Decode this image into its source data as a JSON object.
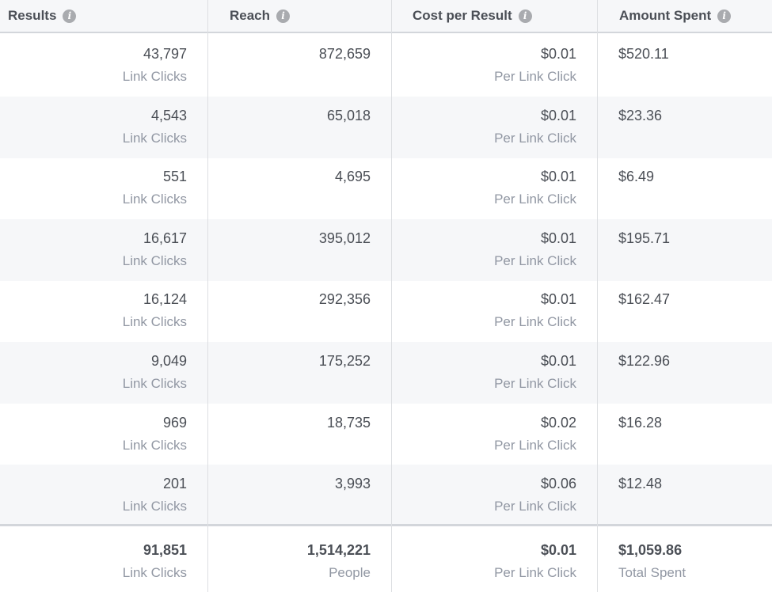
{
  "header": {
    "results": "Results",
    "reach": "Reach",
    "cost_per_result": "Cost per Result",
    "amount_spent": "Amount Spent"
  },
  "rows": [
    {
      "results": "43,797",
      "results_sub": "Link Clicks",
      "reach": "872,659",
      "cost": "$0.01",
      "cost_sub": "Per Link Click",
      "spent": "$520.11"
    },
    {
      "results": "4,543",
      "results_sub": "Link Clicks",
      "reach": "65,018",
      "cost": "$0.01",
      "cost_sub": "Per Link Click",
      "spent": "$23.36"
    },
    {
      "results": "551",
      "results_sub": "Link Clicks",
      "reach": "4,695",
      "cost": "$0.01",
      "cost_sub": "Per Link Click",
      "spent": "$6.49"
    },
    {
      "results": "16,617",
      "results_sub": "Link Clicks",
      "reach": "395,012",
      "cost": "$0.01",
      "cost_sub": "Per Link Click",
      "spent": "$195.71"
    },
    {
      "results": "16,124",
      "results_sub": "Link Clicks",
      "reach": "292,356",
      "cost": "$0.01",
      "cost_sub": "Per Link Click",
      "spent": "$162.47"
    },
    {
      "results": "9,049",
      "results_sub": "Link Clicks",
      "reach": "175,252",
      "cost": "$0.01",
      "cost_sub": "Per Link Click",
      "spent": "$122.96"
    },
    {
      "results": "969",
      "results_sub": "Link Clicks",
      "reach": "18,735",
      "cost": "$0.02",
      "cost_sub": "Per Link Click",
      "spent": "$16.28"
    },
    {
      "results": "201",
      "results_sub": "Link Clicks",
      "reach": "3,993",
      "cost": "$0.06",
      "cost_sub": "Per Link Click",
      "spent": "$12.48"
    }
  ],
  "totals": {
    "results": "91,851",
    "results_sub": "Link Clicks",
    "reach": "1,514,221",
    "reach_sub": "People",
    "cost": "$0.01",
    "cost_sub": "Per Link Click",
    "spent": "$1,059.86",
    "spent_sub": "Total Spent"
  }
}
